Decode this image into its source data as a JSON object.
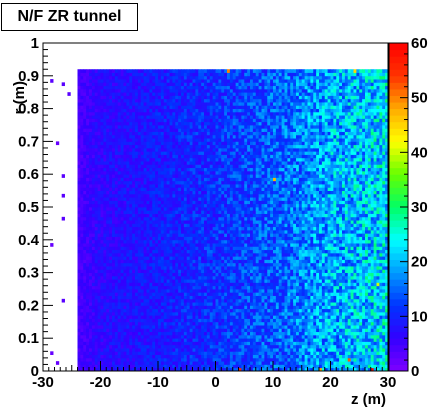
{
  "chart_data": {
    "type": "heatmap",
    "title": "N/F ZR tunnel",
    "xlabel": "z (m)",
    "ylabel": "r (m)",
    "xlim": [
      -30,
      30
    ],
    "ylim": [
      0,
      1
    ],
    "x_ticks": [
      "-30",
      "-20",
      "-10",
      "0",
      "10",
      "20",
      "30"
    ],
    "y_ticks": [
      "0",
      "0.1",
      "0.2",
      "0.3",
      "0.4",
      "0.5",
      "0.6",
      "0.7",
      "0.8",
      "0.9",
      "1"
    ],
    "z_range": [
      0,
      60
    ],
    "z_ticks": [
      "0",
      "10",
      "20",
      "30",
      "40",
      "50",
      "60"
    ],
    "palette": [
      "#7f00ff",
      "#3300ff",
      "#0033ff",
      "#0099ff",
      "#00ffff",
      "#00ff66",
      "#66ff00",
      "#ffff00",
      "#ffaa00",
      "#ff3300",
      "#ff0000"
    ],
    "bin_width_z": 0.5,
    "bin_width_r": 0.01,
    "filled_region": {
      "z": [
        -24,
        30
      ],
      "r": [
        0,
        0.92
      ]
    },
    "column_means": [
      [
        -24,
        4
      ],
      [
        -20,
        7
      ],
      [
        -10,
        9
      ],
      [
        0,
        11
      ],
      [
        10,
        14
      ],
      [
        20,
        19
      ],
      [
        30,
        22
      ]
    ],
    "sparse_points": [
      {
        "z": -28.5,
        "r": 0.885,
        "value": 3
      },
      {
        "z": -26.5,
        "r": 0.875,
        "value": 3
      },
      {
        "z": -25.5,
        "r": 0.845,
        "value": 3
      },
      {
        "z": -27.5,
        "r": 0.695,
        "value": 2
      },
      {
        "z": -26.5,
        "r": 0.595,
        "value": 3
      },
      {
        "z": -26.5,
        "r": 0.535,
        "value": 3
      },
      {
        "z": -26.5,
        "r": 0.465,
        "value": 3
      },
      {
        "z": -28.5,
        "r": 0.385,
        "value": 2
      },
      {
        "z": -26.5,
        "r": 0.215,
        "value": 3
      },
      {
        "z": -28.5,
        "r": 0.055,
        "value": 2
      },
      {
        "z": -27.5,
        "r": 0.025,
        "value": 2
      }
    ],
    "hot_spots": [
      {
        "z": 2,
        "r": 0.915,
        "value": 50
      },
      {
        "z": 4,
        "r": 0.005,
        "value": 55
      },
      {
        "z": 18,
        "r": 0.005,
        "value": 48
      },
      {
        "z": 23,
        "r": 0.035,
        "value": 52
      },
      {
        "z": 27,
        "r": 0.005,
        "value": 58
      },
      {
        "z": 24,
        "r": 0.915,
        "value": 45
      },
      {
        "z": 10,
        "r": 0.585,
        "value": 47
      },
      {
        "z": 28,
        "r": 0.265,
        "value": 40
      }
    ],
    "legend": "colorbar-right",
    "grid": false
  }
}
